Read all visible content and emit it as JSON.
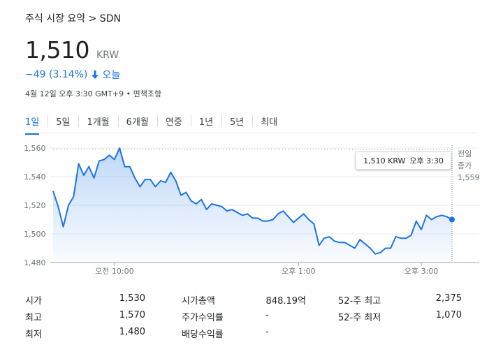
{
  "breadcrumb": "주식 시장 요약 > SDN",
  "price": "1,510",
  "currency": "KRW",
  "change": "−49 (3.14%)",
  "change_arrow_icon": "arrow-down-icon",
  "change_period": "오늘",
  "timestamp": "4월 12일 오후 3:30 GMT+9 • 면책조항",
  "tabs": [
    "1일",
    "5일",
    "1개월",
    "6개월",
    "연중",
    "1년",
    "5년",
    "최대"
  ],
  "active_tab": "1일",
  "tooltip": {
    "price": "1,510 KRW",
    "time": "오후 3:30"
  },
  "prev_close": {
    "label_line1": "전일",
    "label_line2": "종가",
    "value": "1,559"
  },
  "stats": {
    "col1": [
      {
        "label": "시가",
        "value": "1,530"
      },
      {
        "label": "최고",
        "value": "1,570"
      },
      {
        "label": "최저",
        "value": "1,480"
      }
    ],
    "col2": [
      {
        "label": "시가총액",
        "value": "848.19억"
      },
      {
        "label": "주가수익률",
        "value": "-"
      },
      {
        "label": "배당수익률",
        "value": "-"
      }
    ],
    "col3": [
      {
        "label": "52-주 최고",
        "value": "2,375"
      },
      {
        "label": "52-주 최저",
        "value": "1,070"
      }
    ]
  },
  "colors": {
    "accent": "#1a73e8",
    "line": "#1a73e8",
    "negative": "#1a73e8"
  },
  "chart_data": {
    "type": "area",
    "ylim": [
      1480,
      1560
    ],
    "yticks": [
      "1,480",
      "1,500",
      "1,520",
      "1,540",
      "1,560"
    ],
    "ytick_values": [
      1480,
      1500,
      1520,
      1540,
      1560
    ],
    "x_range_minutes": [
      540,
      930
    ],
    "xticks": [
      {
        "label": "오전 10:00",
        "minute": 600
      },
      {
        "label": "오후 1:00",
        "minute": 780
      },
      {
        "label": "오후 3:00",
        "minute": 900
      }
    ],
    "prev_close": 1559,
    "series": [
      {
        "values": [
          [
            540,
            1530
          ],
          [
            545,
            1519
          ],
          [
            550,
            1505
          ],
          [
            555,
            1520
          ],
          [
            560,
            1526
          ],
          [
            565,
            1549
          ],
          [
            570,
            1541
          ],
          [
            575,
            1547
          ],
          [
            580,
            1539
          ],
          [
            585,
            1551
          ],
          [
            590,
            1552
          ],
          [
            595,
            1555
          ],
          [
            600,
            1552
          ],
          [
            605,
            1560
          ],
          [
            610,
            1547
          ],
          [
            615,
            1547
          ],
          [
            620,
            1539
          ],
          [
            625,
            1533
          ],
          [
            630,
            1538
          ],
          [
            635,
            1538
          ],
          [
            640,
            1533
          ],
          [
            645,
            1537
          ],
          [
            650,
            1536
          ],
          [
            655,
            1543
          ],
          [
            660,
            1537
          ],
          [
            665,
            1527
          ],
          [
            670,
            1529
          ],
          [
            675,
            1523
          ],
          [
            680,
            1521
          ],
          [
            685,
            1524
          ],
          [
            690,
            1517
          ],
          [
            695,
            1521
          ],
          [
            700,
            1520
          ],
          [
            705,
            1519
          ],
          [
            710,
            1516
          ],
          [
            715,
            1517
          ],
          [
            720,
            1515
          ],
          [
            725,
            1513
          ],
          [
            730,
            1514
          ],
          [
            735,
            1511
          ],
          [
            740,
            1511
          ],
          [
            745,
            1509
          ],
          [
            750,
            1509
          ],
          [
            755,
            1510
          ],
          [
            760,
            1514
          ],
          [
            765,
            1516
          ],
          [
            770,
            1512
          ],
          [
            775,
            1508
          ],
          [
            780,
            1511
          ],
          [
            785,
            1514
          ],
          [
            790,
            1510
          ],
          [
            795,
            1507
          ],
          [
            800,
            1492
          ],
          [
            805,
            1497
          ],
          [
            810,
            1498
          ],
          [
            815,
            1495
          ],
          [
            820,
            1494
          ],
          [
            825,
            1494
          ],
          [
            830,
            1492
          ],
          [
            835,
            1490
          ],
          [
            840,
            1496
          ],
          [
            845,
            1493
          ],
          [
            850,
            1490
          ],
          [
            855,
            1486
          ],
          [
            860,
            1487
          ],
          [
            865,
            1490
          ],
          [
            870,
            1490
          ],
          [
            875,
            1498
          ],
          [
            880,
            1497
          ],
          [
            885,
            1497
          ],
          [
            890,
            1499
          ],
          [
            895,
            1509
          ],
          [
            900,
            1503
          ],
          [
            905,
            1513
          ],
          [
            910,
            1510
          ],
          [
            915,
            1512
          ],
          [
            920,
            1513
          ],
          [
            925,
            1512
          ],
          [
            930,
            1510
          ]
        ]
      }
    ]
  }
}
